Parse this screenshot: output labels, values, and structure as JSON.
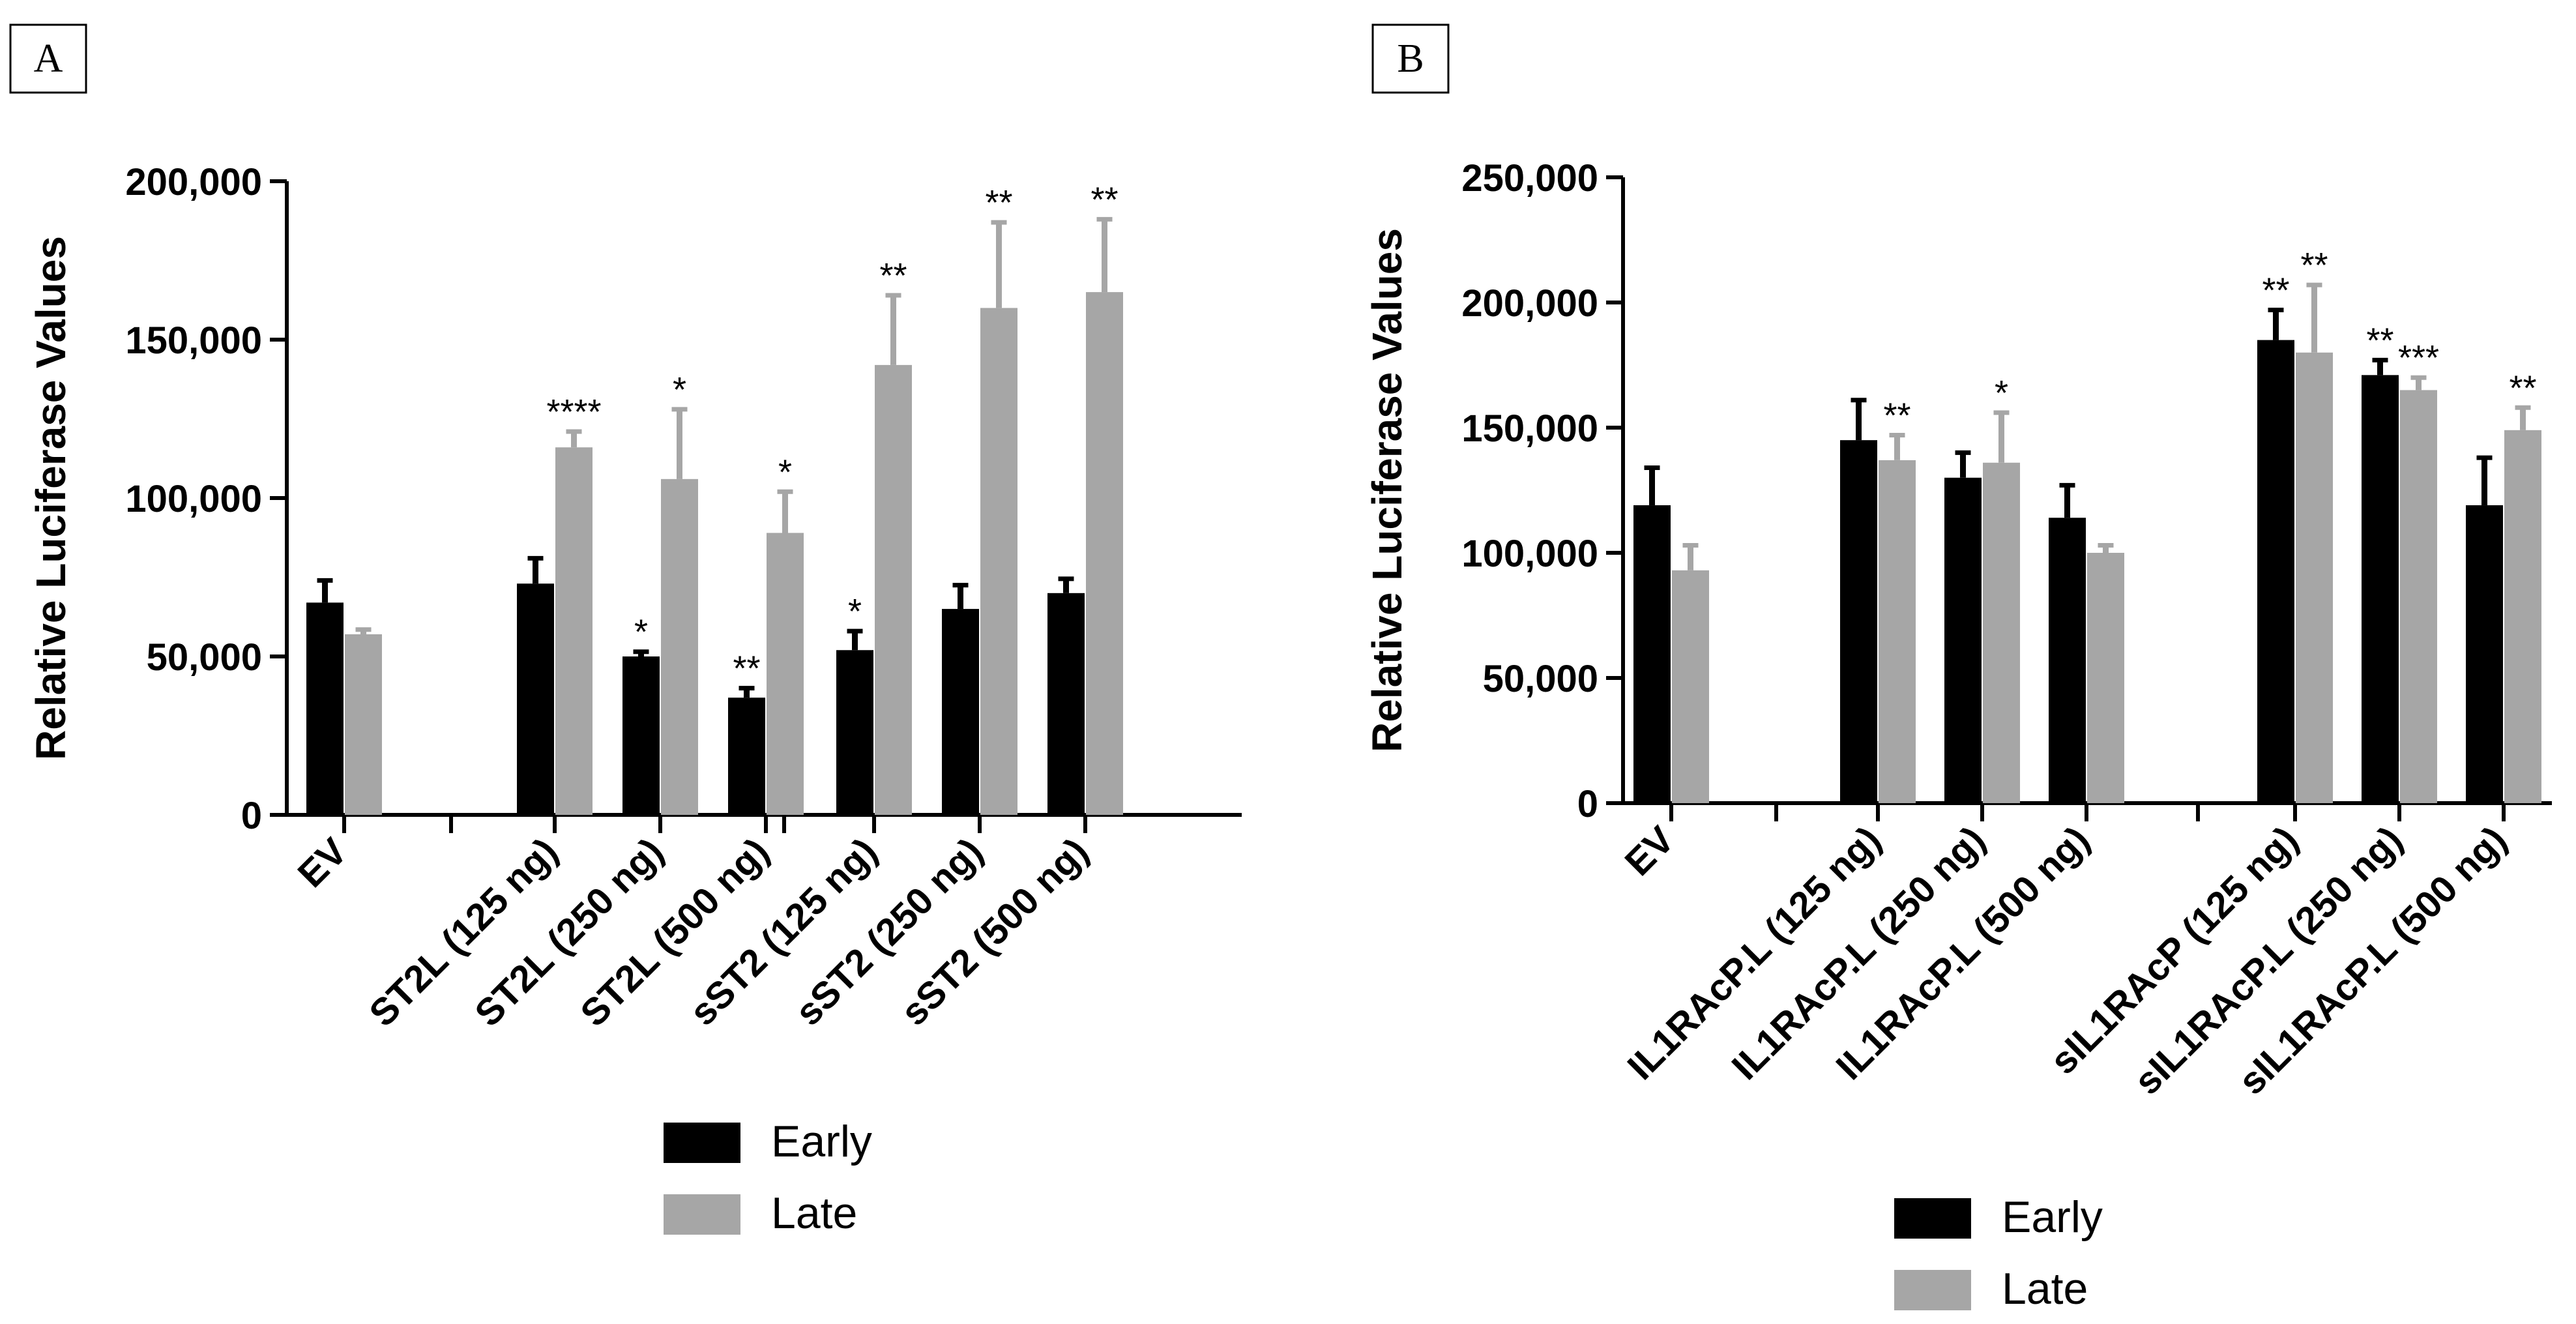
{
  "colors": {
    "early": "#000000",
    "late": "#a6a6a6",
    "axis": "#000000"
  },
  "legend": {
    "early_label": "Early",
    "late_label": "Late"
  },
  "chart_data": [
    {
      "panel_label": "A",
      "type": "bar",
      "ylabel": "Relative Luciferase Values",
      "ylim": [
        0,
        200000
      ],
      "yticks": [
        0,
        50000,
        100000,
        150000,
        200000
      ],
      "ytick_labels": [
        "0",
        "50,000",
        "100,000",
        "150,000",
        "200,000"
      ],
      "groups": [
        [
          "EV"
        ],
        [
          "ST2L (125 ng)",
          "ST2L (250 ng)",
          "ST2L (500 ng)"
        ],
        [
          "sST2 (125 ng)",
          "sST2 (250 ng)",
          "sST2 (500 ng)"
        ]
      ],
      "categories": [
        "EV",
        "ST2L (125 ng)",
        "ST2L (250 ng)",
        "ST2L (500 ng)",
        "sST2 (125 ng)",
        "sST2 (250 ng)",
        "sST2 (500 ng)"
      ],
      "series": [
        {
          "name": "Early",
          "values": [
            67000,
            73000,
            50000,
            37000,
            52000,
            65000,
            70000
          ],
          "errors": [
            7000,
            8000,
            1500,
            3000,
            6000,
            7500,
            4500
          ],
          "sig": [
            "",
            "",
            "*",
            "**",
            "*",
            "",
            ""
          ]
        },
        {
          "name": "Late",
          "values": [
            57000,
            116000,
            106000,
            89000,
            142000,
            160000,
            165000
          ],
          "errors": [
            1500,
            5000,
            22000,
            13000,
            22000,
            27000,
            23000
          ],
          "sig": [
            "",
            "****",
            "*",
            "*",
            "**",
            "**",
            "**"
          ]
        }
      ],
      "legend_position": "bottom"
    },
    {
      "panel_label": "B",
      "type": "bar",
      "ylabel": "Relative Luciferase Values",
      "ylim": [
        0,
        250000
      ],
      "yticks": [
        0,
        50000,
        100000,
        150000,
        200000,
        250000
      ],
      "ytick_labels": [
        "0",
        "50,000",
        "100,000",
        "150,000",
        "200,000",
        "250,000"
      ],
      "groups": [
        [
          "EV"
        ],
        [
          "IL1RAcP.L (125 ng)",
          "IL1RAcP.L (250 ng)",
          "IL1RAcP.L (500 ng)"
        ],
        [
          "sIL1RAcP (125 ng)",
          "sIL1RAcP.L (250 ng)",
          "sIL1RAcP.L (500 ng)"
        ]
      ],
      "categories": [
        "EV",
        "IL1RAcP.L (125 ng)",
        "IL1RAcP.L (250 ng)",
        "IL1RAcP.L (500 ng)",
        "sIL1RAcP (125 ng)",
        "sIL1RAcP.L (250 ng)",
        "sIL1RAcP.L (500 ng)"
      ],
      "series": [
        {
          "name": "Early",
          "values": [
            119000,
            145000,
            130000,
            114000,
            185000,
            171000,
            119000
          ],
          "errors": [
            15000,
            16000,
            10000,
            13000,
            12000,
            6000,
            19000
          ],
          "sig": [
            "",
            "",
            "",
            "",
            "**",
            "**",
            ""
          ]
        },
        {
          "name": "Late",
          "values": [
            93000,
            137000,
            136000,
            100000,
            180000,
            165000,
            149000
          ],
          "errors": [
            10000,
            10000,
            20000,
            3000,
            27000,
            5000,
            9000
          ],
          "sig": [
            "",
            "**",
            "*",
            "",
            "**",
            "***",
            "**"
          ]
        }
      ],
      "legend_position": "bottom"
    }
  ]
}
